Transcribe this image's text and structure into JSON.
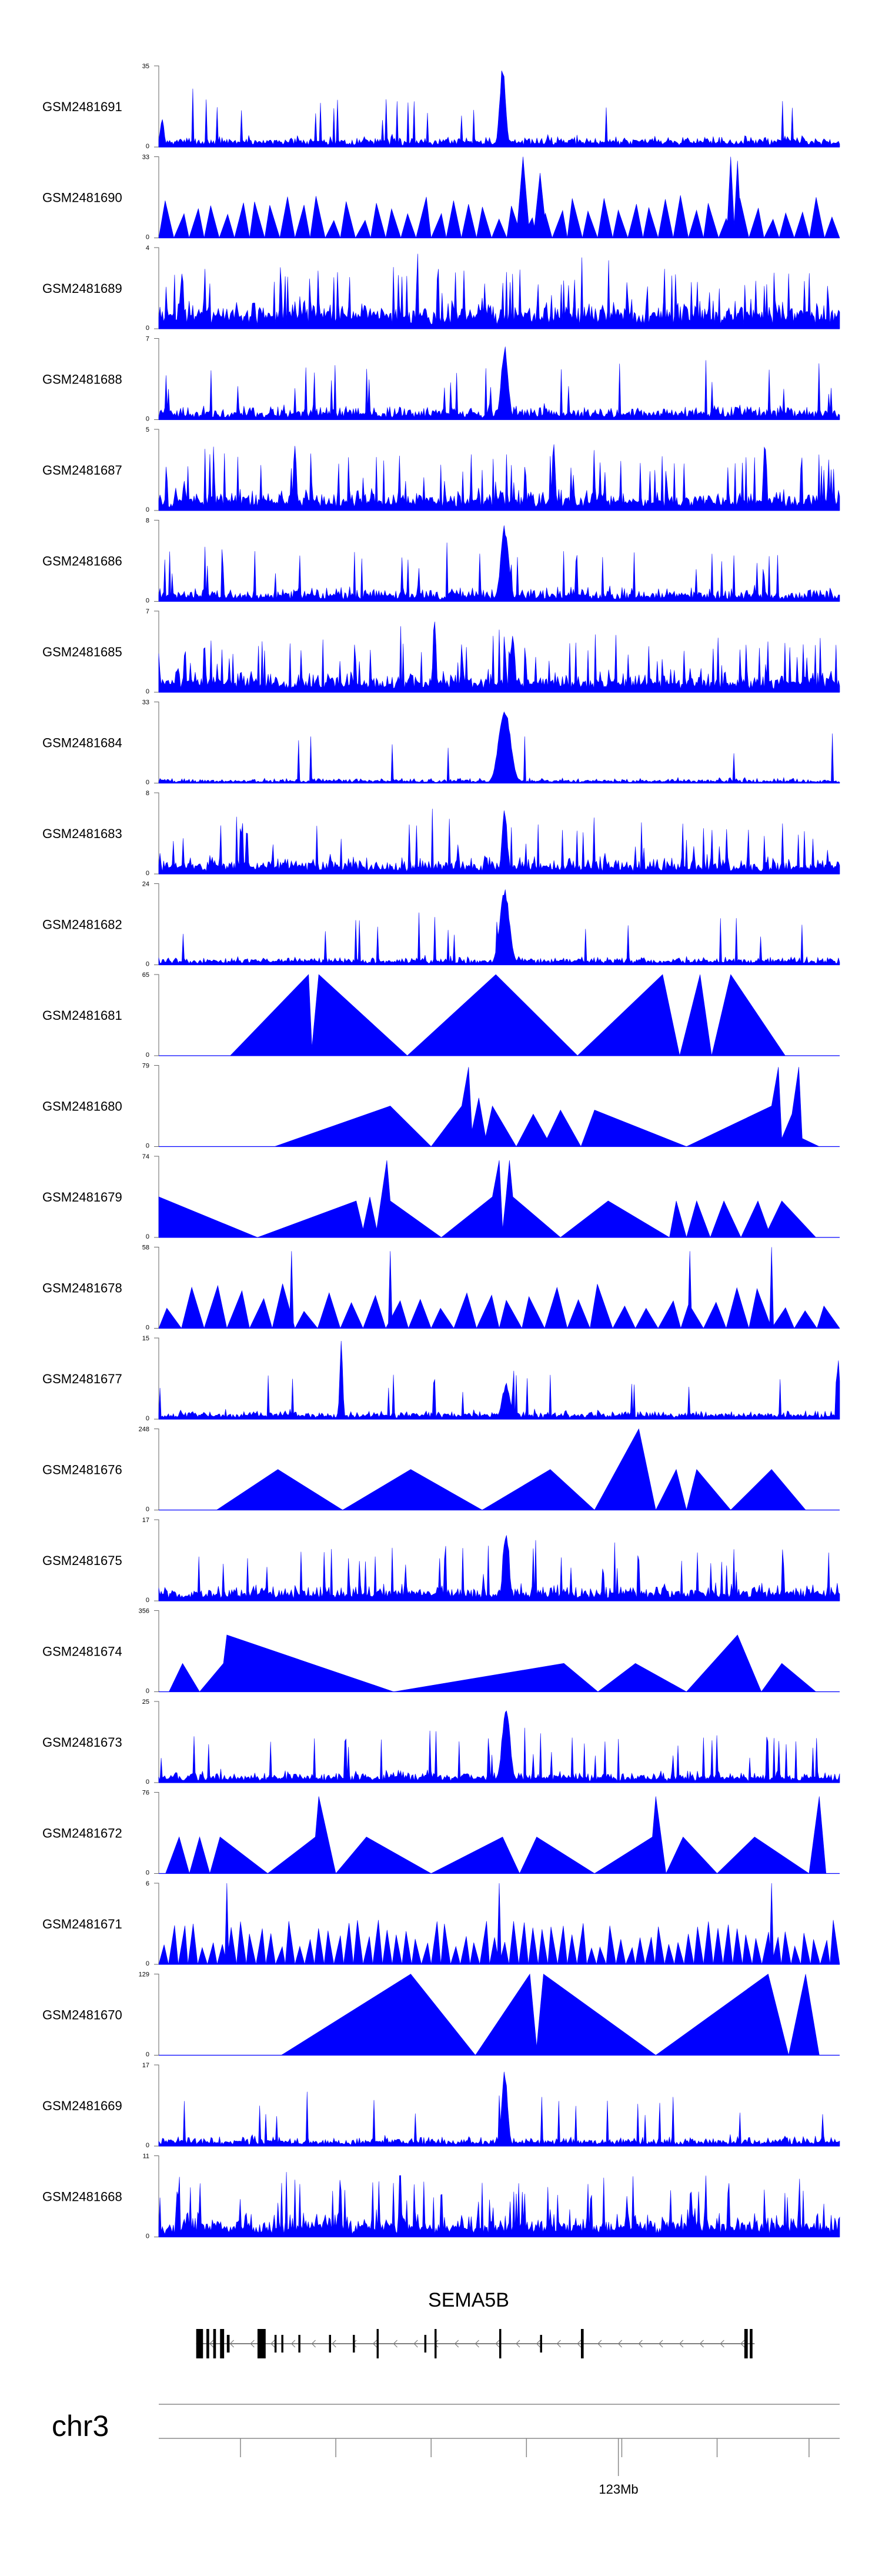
{
  "chart_data": {
    "type": "area",
    "color": "#0000ff",
    "region": {
      "chrom": "chr3",
      "start": 122450000,
      "end": 123660000
    },
    "tracks": [
      {
        "name": "GSM2481691",
        "ymax": "35",
        "ymin": "0",
        "style": "dense",
        "base": 0.06,
        "noise": 0.1,
        "spike_rate": 0.03,
        "peaks": [
          {
            "x": 0.505,
            "h": 1.0,
            "w": 0.006
          },
          {
            "x": 0.005,
            "h": 0.35,
            "w": 0.004
          }
        ]
      },
      {
        "name": "GSM2481690",
        "ymax": "33",
        "ymin": "0",
        "style": "triangles",
        "count": 45,
        "peaks": [
          {
            "x": 0.535,
            "h": 1.0,
            "w": 0.01
          },
          {
            "x": 0.56,
            "h": 0.8,
            "w": 0.01
          },
          {
            "x": 0.84,
            "h": 1.0,
            "w": 0.006
          },
          {
            "x": 0.85,
            "h": 0.95,
            "w": 0.006
          }
        ]
      },
      {
        "name": "GSM2481689",
        "ymax": "4",
        "ymin": "0",
        "style": "dense",
        "base": 0.15,
        "noise": 0.25,
        "spike_rate": 0.12,
        "peaks": []
      },
      {
        "name": "GSM2481688",
        "ymax": "7",
        "ymin": "0",
        "style": "dense",
        "base": 0.06,
        "noise": 0.15,
        "spike_rate": 0.05,
        "peaks": [
          {
            "x": 0.508,
            "h": 0.95,
            "w": 0.007
          }
        ]
      },
      {
        "name": "GSM2481687",
        "ymax": "5",
        "ymin": "0",
        "style": "dense",
        "base": 0.1,
        "noise": 0.2,
        "spike_rate": 0.1,
        "peaks": [
          {
            "x": 0.2,
            "h": 0.9,
            "w": 0.003
          },
          {
            "x": 0.58,
            "h": 0.9,
            "w": 0.003
          },
          {
            "x": 0.89,
            "h": 0.95,
            "w": 0.003
          }
        ]
      },
      {
        "name": "GSM2481686",
        "ymax": "8",
        "ymin": "0",
        "style": "dense",
        "base": 0.06,
        "noise": 0.14,
        "spike_rate": 0.05,
        "peaks": [
          {
            "x": 0.508,
            "h": 0.95,
            "w": 0.008
          }
        ]
      },
      {
        "name": "GSM2481685",
        "ymax": "7",
        "ymin": "0",
        "style": "dense",
        "base": 0.1,
        "noise": 0.2,
        "spike_rate": 0.1,
        "peaks": [
          {
            "x": 0.405,
            "h": 1.0,
            "w": 0.003
          },
          {
            "x": 0.52,
            "h": 0.8,
            "w": 0.004
          }
        ]
      },
      {
        "name": "GSM2481684",
        "ymax": "33",
        "ymin": "0",
        "style": "dense",
        "base": 0.02,
        "noise": 0.05,
        "spike_rate": 0.02,
        "peaks": [
          {
            "x": 0.508,
            "h": 0.95,
            "w": 0.012
          }
        ]
      },
      {
        "name": "GSM2481683",
        "ymax": "8",
        "ymin": "0",
        "style": "dense",
        "base": 0.08,
        "noise": 0.18,
        "spike_rate": 0.08,
        "peaks": [
          {
            "x": 0.508,
            "h": 0.85,
            "w": 0.005
          }
        ]
      },
      {
        "name": "GSM2481682",
        "ymax": "24",
        "ymin": "0",
        "style": "dense",
        "base": 0.04,
        "noise": 0.08,
        "spike_rate": 0.03,
        "peaks": [
          {
            "x": 0.508,
            "h": 0.95,
            "w": 0.01
          }
        ]
      },
      {
        "name": "GSM2481681",
        "ymax": "65",
        "ymin": "0",
        "style": "polygon",
        "points": [
          [
            0.105,
            0
          ],
          [
            0.22,
            1.0
          ],
          [
            0.225,
            0.1
          ],
          [
            0.235,
            1.0
          ],
          [
            0.365,
            0
          ],
          [
            0.495,
            1.0
          ],
          [
            0.615,
            0
          ],
          [
            0.74,
            1.0
          ],
          [
            0.765,
            0
          ],
          [
            0.795,
            1.0
          ],
          [
            0.812,
            0
          ],
          [
            0.84,
            1.0
          ],
          [
            0.92,
            0
          ]
        ]
      },
      {
        "name": "GSM2481680",
        "ymax": "79",
        "ymin": "0",
        "style": "polygon",
        "points": [
          [
            0.17,
            0
          ],
          [
            0.34,
            0.5
          ],
          [
            0.4,
            0
          ],
          [
            0.445,
            0.5
          ],
          [
            0.455,
            0.98
          ],
          [
            0.46,
            0.2
          ],
          [
            0.47,
            0.6
          ],
          [
            0.48,
            0.12
          ],
          [
            0.49,
            0.5
          ],
          [
            0.525,
            0
          ],
          [
            0.55,
            0.4
          ],
          [
            0.57,
            0.1
          ],
          [
            0.59,
            0.45
          ],
          [
            0.62,
            0
          ],
          [
            0.64,
            0.45
          ],
          [
            0.775,
            0
          ],
          [
            0.9,
            0.5
          ],
          [
            0.91,
            0.98
          ],
          [
            0.915,
            0.1
          ],
          [
            0.93,
            0.4
          ],
          [
            0.94,
            0.98
          ],
          [
            0.945,
            0.1
          ],
          [
            0.97,
            0
          ]
        ]
      },
      {
        "name": "GSM2481679",
        "ymax": "74",
        "ymin": "0",
        "style": "polygon",
        "points": [
          [
            0.0,
            0.5
          ],
          [
            0.145,
            0
          ],
          [
            0.29,
            0.45
          ],
          [
            0.3,
            0.1
          ],
          [
            0.31,
            0.5
          ],
          [
            0.32,
            0.1
          ],
          [
            0.335,
            0.95
          ],
          [
            0.34,
            0.45
          ],
          [
            0.415,
            0
          ],
          [
            0.49,
            0.5
          ],
          [
            0.5,
            0.95
          ],
          [
            0.505,
            0.1
          ],
          [
            0.51,
            0.5
          ],
          [
            0.515,
            0.95
          ],
          [
            0.52,
            0.5
          ],
          [
            0.59,
            0
          ],
          [
            0.66,
            0.45
          ],
          [
            0.75,
            0
          ],
          [
            0.76,
            0.45
          ],
          [
            0.775,
            0
          ],
          [
            0.79,
            0.45
          ],
          [
            0.81,
            0
          ],
          [
            0.83,
            0.45
          ],
          [
            0.855,
            0
          ],
          [
            0.88,
            0.45
          ],
          [
            0.895,
            0.1
          ],
          [
            0.915,
            0.45
          ],
          [
            0.965,
            0
          ]
        ]
      },
      {
        "name": "GSM2481678",
        "ymax": "58",
        "ymin": "0",
        "style": "triangles",
        "count": 30,
        "peaks": [
          {
            "x": 0.195,
            "h": 0.95,
            "w": 0.003
          },
          {
            "x": 0.34,
            "h": 0.95,
            "w": 0.003
          },
          {
            "x": 0.78,
            "h": 0.95,
            "w": 0.003
          },
          {
            "x": 0.9,
            "h": 1.0,
            "w": 0.003
          }
        ]
      },
      {
        "name": "GSM2481677",
        "ymax": "15",
        "ymin": "0",
        "style": "dense",
        "base": 0.04,
        "noise": 0.08,
        "spike_rate": 0.03,
        "peaks": [
          {
            "x": 0.268,
            "h": 1.0,
            "w": 0.003
          },
          {
            "x": 0.51,
            "h": 0.45,
            "w": 0.008
          },
          {
            "x": 0.998,
            "h": 0.85,
            "w": 0.003
          }
        ]
      },
      {
        "name": "GSM2481676",
        "ymax": "248",
        "ymin": "0",
        "style": "polygon",
        "points": [
          [
            0.085,
            0
          ],
          [
            0.175,
            0.5
          ],
          [
            0.27,
            0
          ],
          [
            0.37,
            0.5
          ],
          [
            0.475,
            0
          ],
          [
            0.575,
            0.5
          ],
          [
            0.64,
            0
          ],
          [
            0.705,
            1.0
          ],
          [
            0.73,
            0
          ],
          [
            0.76,
            0.5
          ],
          [
            0.775,
            0
          ],
          [
            0.79,
            0.5
          ],
          [
            0.84,
            0
          ],
          [
            0.9,
            0.5
          ],
          [
            0.95,
            0
          ]
        ]
      },
      {
        "name": "GSM2481675",
        "ymax": "17",
        "ymin": "0",
        "style": "dense",
        "base": 0.08,
        "noise": 0.15,
        "spike_rate": 0.06,
        "peaks": [
          {
            "x": 0.51,
            "h": 0.9,
            "w": 0.006
          }
        ]
      },
      {
        "name": "GSM2481674",
        "ymax": "356",
        "ymin": "0",
        "style": "polygon",
        "points": [
          [
            0.015,
            0
          ],
          [
            0.035,
            0.35
          ],
          [
            0.06,
            0
          ],
          [
            0.095,
            0.35
          ],
          [
            0.1,
            0.7
          ],
          [
            0.345,
            0
          ],
          [
            0.595,
            0.35
          ],
          [
            0.645,
            0
          ],
          [
            0.7,
            0.35
          ],
          [
            0.775,
            0
          ],
          [
            0.85,
            0.7
          ],
          [
            0.885,
            0
          ],
          [
            0.915,
            0.35
          ],
          [
            0.965,
            0
          ]
        ]
      },
      {
        "name": "GSM2481673",
        "ymax": "25",
        "ymin": "0",
        "style": "dense",
        "base": 0.05,
        "noise": 0.12,
        "spike_rate": 0.05,
        "peaks": [
          {
            "x": 0.51,
            "h": 0.98,
            "w": 0.008
          }
        ]
      },
      {
        "name": "GSM2481672",
        "ymax": "76",
        "ymin": "0",
        "style": "polygon",
        "points": [
          [
            0.01,
            0
          ],
          [
            0.03,
            0.45
          ],
          [
            0.045,
            0
          ],
          [
            0.06,
            0.45
          ],
          [
            0.075,
            0
          ],
          [
            0.09,
            0.45
          ],
          [
            0.16,
            0
          ],
          [
            0.23,
            0.45
          ],
          [
            0.235,
            0.95
          ],
          [
            0.26,
            0
          ],
          [
            0.305,
            0.45
          ],
          [
            0.4,
            0
          ],
          [
            0.505,
            0.45
          ],
          [
            0.53,
            0
          ],
          [
            0.555,
            0.45
          ],
          [
            0.64,
            0
          ],
          [
            0.725,
            0.45
          ],
          [
            0.73,
            0.95
          ],
          [
            0.745,
            0
          ],
          [
            0.77,
            0.45
          ],
          [
            0.82,
            0
          ],
          [
            0.875,
            0.45
          ],
          [
            0.955,
            0
          ],
          [
            0.97,
            0.95
          ],
          [
            0.98,
            0
          ]
        ]
      },
      {
        "name": "GSM2481671",
        "ymax": "6",
        "ymin": "0",
        "style": "triangles",
        "count": 70,
        "peaks": [
          {
            "x": 0.1,
            "h": 1.0,
            "w": 0.003
          },
          {
            "x": 0.5,
            "h": 1.0,
            "w": 0.003
          },
          {
            "x": 0.9,
            "h": 1.0,
            "w": 0.003
          }
        ]
      },
      {
        "name": "GSM2481670",
        "ymax": "129",
        "ymin": "0",
        "style": "polygon",
        "points": [
          [
            0.18,
            0
          ],
          [
            0.37,
            1.0
          ],
          [
            0.465,
            0
          ],
          [
            0.545,
            1.0
          ],
          [
            0.555,
            0.1
          ],
          [
            0.565,
            1.0
          ],
          [
            0.73,
            0
          ],
          [
            0.895,
            1.0
          ],
          [
            0.925,
            0
          ],
          [
            0.95,
            1.0
          ],
          [
            0.97,
            0
          ]
        ]
      },
      {
        "name": "GSM2481669",
        "ymax": "17",
        "ymin": "0",
        "style": "dense",
        "base": 0.04,
        "noise": 0.1,
        "spike_rate": 0.04,
        "peaks": [
          {
            "x": 0.508,
            "h": 0.95,
            "w": 0.006
          }
        ]
      },
      {
        "name": "GSM2481668",
        "ymax": "11",
        "ymin": "0",
        "style": "dense",
        "base": 0.1,
        "noise": 0.25,
        "spike_rate": 0.1,
        "peaks": []
      }
    ],
    "gene": {
      "name": "SEMA5B",
      "strand": "-",
      "start_frac": 0.055,
      "end_frac": 0.875,
      "exons": [
        {
          "x": 0.055,
          "w": 0.01,
          "tall": true
        },
        {
          "x": 0.07,
          "w": 0.004,
          "tall": true
        },
        {
          "x": 0.08,
          "w": 0.004,
          "tall": true
        },
        {
          "x": 0.09,
          "w": 0.006,
          "tall": true
        },
        {
          "x": 0.1,
          "w": 0.004,
          "tall": false
        },
        {
          "x": 0.145,
          "w": 0.012,
          "tall": true
        },
        {
          "x": 0.17,
          "w": 0.003,
          "tall": false
        },
        {
          "x": 0.18,
          "w": 0.003,
          "tall": false
        },
        {
          "x": 0.205,
          "w": 0.003,
          "tall": false
        },
        {
          "x": 0.25,
          "w": 0.003,
          "tall": false
        },
        {
          "x": 0.285,
          "w": 0.003,
          "tall": false
        },
        {
          "x": 0.32,
          "w": 0.003,
          "tall": true
        },
        {
          "x": 0.39,
          "w": 0.003,
          "tall": false
        },
        {
          "x": 0.405,
          "w": 0.003,
          "tall": true
        },
        {
          "x": 0.5,
          "w": 0.003,
          "tall": true
        },
        {
          "x": 0.56,
          "w": 0.003,
          "tall": false
        },
        {
          "x": 0.62,
          "w": 0.004,
          "tall": true
        },
        {
          "x": 0.86,
          "w": 0.005,
          "tall": true
        },
        {
          "x": 0.868,
          "w": 0.004,
          "tall": true
        }
      ]
    },
    "chromosome": "chr3",
    "xaxis": {
      "tick_fracs": [
        0.12,
        0.26,
        0.4,
        0.54,
        0.68,
        0.82,
        0.955
      ],
      "labeled_tick": {
        "frac": 0.675,
        "label": "123Mb"
      }
    }
  }
}
